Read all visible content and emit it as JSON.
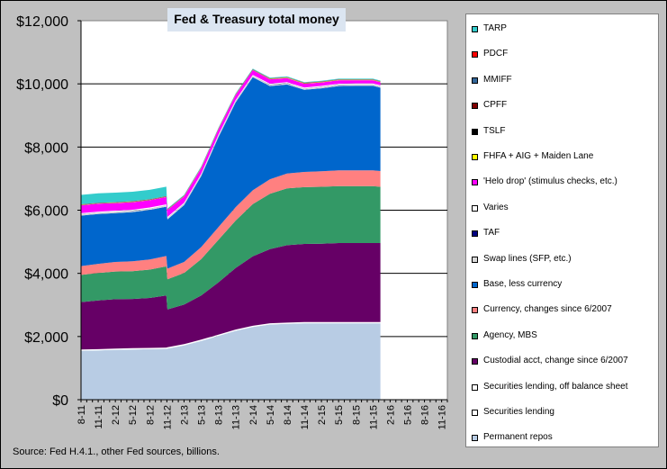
{
  "chart_data": {
    "type": "area",
    "stacked": true,
    "title": "Fed & Treasury total money",
    "source": "Source: Fed H.4.1., other Fed sources, billions.",
    "ylim": [
      0,
      12000
    ],
    "y_ticks": [
      "$0",
      "$2,000",
      "$4,000",
      "$6,000",
      "$8,000",
      "$10,000",
      "$12,000"
    ],
    "y_tick_values": [
      0,
      2000,
      4000,
      6000,
      8000,
      10000,
      12000
    ],
    "x_range": [
      0,
      64
    ],
    "x_ticks": [
      "8-11",
      "11-11",
      "2-12",
      "5-12",
      "8-12",
      "11-12",
      "2-13",
      "5-13",
      "8-13",
      "11-13",
      "2-14",
      "5-14",
      "8-14",
      "11-14",
      "2-15",
      "5-15",
      "8-15",
      "11-15",
      "2-16",
      "5-16",
      "8-16",
      "11-16"
    ],
    "x_tick_positions": [
      0,
      3,
      6,
      9,
      12,
      15,
      18,
      21,
      24,
      27,
      30,
      33,
      36,
      39,
      42,
      45,
      48,
      51,
      54,
      57,
      60,
      63
    ],
    "x": [
      0,
      3,
      6,
      9,
      12,
      14.9,
      15.1,
      18,
      21,
      24,
      27,
      30,
      33,
      36,
      39,
      42,
      45,
      48,
      51,
      52.3
    ],
    "series": [
      {
        "name": "Permanent repos",
        "color": "#b8cce4",
        "values": [
          1550,
          1560,
          1580,
          1590,
          1600,
          1610,
          1620,
          1720,
          1860,
          2020,
          2180,
          2300,
          2380,
          2400,
          2420,
          2420,
          2420,
          2420,
          2420,
          2420
        ]
      },
      {
        "name": "Securities lending",
        "color": "#ffffff",
        "values": [
          30,
          30,
          30,
          30,
          30,
          30,
          30,
          30,
          30,
          30,
          30,
          30,
          30,
          30,
          30,
          30,
          30,
          30,
          30,
          30
        ]
      },
      {
        "name": "Securities lending, off balance sheet",
        "color": "#ffffff",
        "values": [
          10,
          10,
          10,
          10,
          10,
          10,
          10,
          10,
          10,
          10,
          10,
          10,
          10,
          10,
          10,
          10,
          10,
          10,
          10,
          10
        ]
      },
      {
        "name": "Custodial acct, change since 6/2007",
        "color": "#660066",
        "values": [
          1500,
          1540,
          1560,
          1560,
          1580,
          1650,
          1200,
          1250,
          1400,
          1650,
          1950,
          2200,
          2350,
          2450,
          2470,
          2480,
          2500,
          2500,
          2500,
          2500
        ]
      },
      {
        "name": "Agency, MBS",
        "color": "#339966",
        "values": [
          860,
          870,
          880,
          880,
          900,
          920,
          950,
          1000,
          1150,
          1350,
          1500,
          1650,
          1750,
          1800,
          1800,
          1800,
          1800,
          1800,
          1800,
          1780
        ]
      },
      {
        "name": "Currency, changes since 6/2007",
        "color": "#ff8080",
        "values": [
          280,
          290,
          300,
          310,
          320,
          330,
          340,
          350,
          380,
          400,
          420,
          440,
          460,
          470,
          480,
          490,
          500,
          500,
          500,
          500
        ]
      },
      {
        "name": "Base, less currency",
        "color": "#0066cc",
        "values": [
          1600,
          1580,
          1550,
          1560,
          1570,
          1560,
          1560,
          1800,
          2250,
          2850,
          3320,
          3580,
          2950,
          2820,
          2600,
          2630,
          2670,
          2680,
          2680,
          2640
        ]
      },
      {
        "name": "Swap lines (SFP, etc.)",
        "color": "#d9d9d9",
        "values": [
          40,
          40,
          40,
          40,
          40,
          40,
          40,
          40,
          40,
          40,
          40,
          40,
          40,
          40,
          40,
          40,
          40,
          40,
          40,
          40
        ]
      },
      {
        "name": "TAF",
        "color": "#000080",
        "values": [
          5,
          5,
          5,
          5,
          5,
          5,
          5,
          5,
          5,
          5,
          5,
          5,
          5,
          5,
          5,
          5,
          5,
          5,
          5,
          5
        ]
      },
      {
        "name": "Varies",
        "color": "#ffffff",
        "values": [
          30,
          30,
          30,
          30,
          30,
          30,
          30,
          30,
          30,
          30,
          30,
          30,
          30,
          30,
          30,
          30,
          30,
          30,
          30,
          30
        ]
      },
      {
        "name": "'Helo drop' (stimulus checks, etc.)",
        "color": "#ff00ff",
        "values": [
          250,
          250,
          240,
          240,
          230,
          230,
          220,
          200,
          180,
          170,
          160,
          150,
          140,
          130,
          120,
          110,
          110,
          100,
          100,
          100
        ]
      },
      {
        "name": "FHFA + AIG + Maiden Lane",
        "color": "#ffff00",
        "values": [
          10,
          10,
          10,
          10,
          10,
          10,
          10,
          10,
          10,
          10,
          10,
          10,
          10,
          10,
          10,
          10,
          10,
          10,
          10,
          10
        ]
      },
      {
        "name": "TSLF",
        "color": "#000000",
        "values": [
          5,
          5,
          5,
          5,
          5,
          5,
          5,
          5,
          5,
          5,
          5,
          5,
          5,
          5,
          5,
          5,
          5,
          5,
          5,
          5
        ]
      },
      {
        "name": "CPFF",
        "color": "#800000",
        "values": [
          5,
          5,
          5,
          5,
          5,
          5,
          5,
          5,
          5,
          5,
          5,
          5,
          5,
          5,
          5,
          5,
          5,
          5,
          5,
          5
        ]
      },
      {
        "name": "MMIFF",
        "color": "#336699",
        "values": [
          5,
          5,
          5,
          5,
          5,
          5,
          5,
          5,
          5,
          5,
          5,
          5,
          5,
          5,
          5,
          5,
          5,
          5,
          5,
          5
        ]
      },
      {
        "name": "PDCF",
        "color": "#ff0000",
        "values": [
          5,
          5,
          5,
          5,
          5,
          5,
          5,
          5,
          5,
          5,
          5,
          5,
          5,
          5,
          5,
          5,
          5,
          5,
          5,
          5
        ]
      },
      {
        "name": "TARP",
        "color": "#33cccc",
        "values": [
          300,
          300,
          300,
          300,
          300,
          300,
          20,
          20,
          20,
          20,
          20,
          20,
          20,
          20,
          20,
          20,
          20,
          20,
          20,
          20
        ]
      }
    ],
    "legend_order": [
      "TARP",
      "PDCF",
      "MMIFF",
      "CPFF",
      "TSLF",
      "FHFA + AIG + Maiden Lane",
      "'Helo drop' (stimulus checks, etc.)",
      "Varies",
      "TAF",
      "Swap lines (SFP, etc.)",
      "Base, less currency",
      "Currency, changes since 6/2007",
      "Agency, MBS",
      "Custodial acct, change since 6/2007",
      "Securities lending, off balance sheet",
      "Securities lending",
      "Permanent repos"
    ],
    "legend_position": "right",
    "grid": true,
    "plot_background": "#ffffff"
  }
}
